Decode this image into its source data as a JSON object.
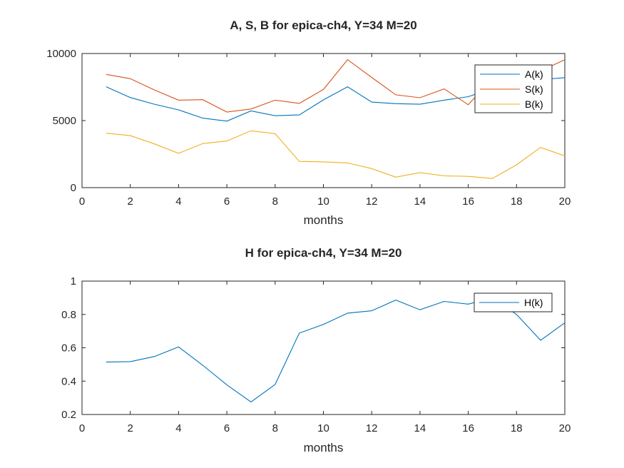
{
  "chart_data": [
    {
      "type": "line",
      "title": "A, S, B for epica-ch4, Y=34 M=20",
      "xlabel": "months",
      "ylabel": "",
      "xlim": [
        0,
        20
      ],
      "ylim": [
        0,
        10000
      ],
      "xticks": [
        0,
        2,
        4,
        6,
        8,
        10,
        12,
        14,
        16,
        18,
        20
      ],
      "yticks": [
        0,
        5000,
        10000
      ],
      "legend_position": "top-right",
      "x": [
        1,
        2,
        3,
        4,
        5,
        6,
        7,
        8,
        9,
        10,
        11,
        12,
        13,
        14,
        15,
        16,
        17,
        18,
        19,
        20
      ],
      "series": [
        {
          "name": "A(k)",
          "color": "#0072BD",
          "values": [
            7520,
            6720,
            6220,
            5800,
            5180,
            4960,
            5720,
            5360,
            5420,
            6540,
            7520,
            6380,
            6260,
            6220,
            6520,
            6780,
            7380,
            7700,
            8050,
            8200
          ]
        },
        {
          "name": "S(k)",
          "color": "#D95319",
          "values": [
            8440,
            8120,
            7280,
            6520,
            6560,
            5640,
            5860,
            6520,
            6280,
            7320,
            9540,
            8220,
            6920,
            6700,
            7360,
            6180,
            8140,
            8400,
            8700,
            9540
          ]
        },
        {
          "name": "B(k)",
          "color": "#EDB120",
          "values": [
            4060,
            3880,
            3260,
            2560,
            3280,
            3480,
            4240,
            4020,
            1960,
            1920,
            1840,
            1420,
            780,
            1120,
            880,
            840,
            680,
            1700,
            3000,
            2360
          ]
        }
      ]
    },
    {
      "type": "line",
      "title": "H for epica-ch4, Y=34 M=20",
      "xlabel": "months",
      "ylabel": "",
      "xlim": [
        0,
        20
      ],
      "ylim": [
        0.2,
        1
      ],
      "xticks": [
        0,
        2,
        4,
        6,
        8,
        10,
        12,
        14,
        16,
        18,
        20
      ],
      "yticks": [
        0.2,
        0.4,
        0.6,
        0.8,
        1
      ],
      "legend_position": "top-right",
      "x": [
        1,
        2,
        3,
        4,
        5,
        6,
        7,
        8,
        9,
        10,
        11,
        12,
        13,
        14,
        15,
        16,
        17,
        18,
        19,
        20
      ],
      "series": [
        {
          "name": "H(k)",
          "color": "#0072BD",
          "values": [
            0.515,
            0.517,
            0.548,
            0.605,
            0.495,
            0.378,
            0.275,
            0.38,
            0.688,
            0.74,
            0.808,
            0.822,
            0.886,
            0.828,
            0.878,
            0.862,
            0.9,
            0.8,
            0.645,
            0.75
          ]
        }
      ]
    }
  ]
}
